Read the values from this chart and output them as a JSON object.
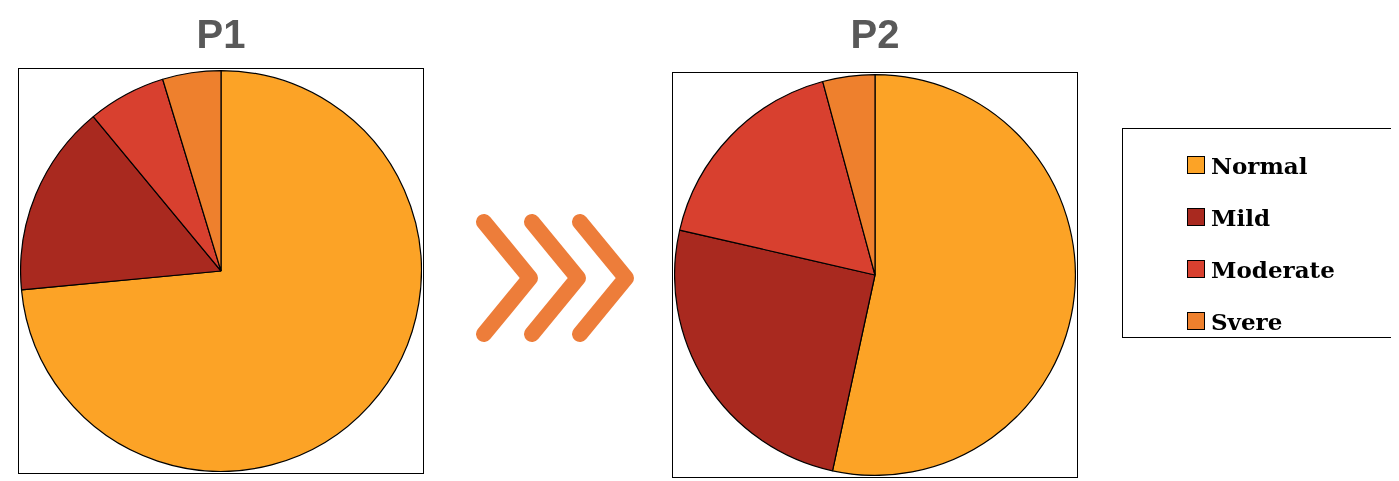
{
  "chart_data": [
    {
      "type": "pie",
      "title": "P1",
      "categories": [
        null,
        null,
        null,
        null
      ],
      "values": [
        73.5,
        15.5,
        6.3,
        4.7
      ],
      "colors": [
        "#fca326",
        "#a9291f",
        "#d8402f",
        "#ee802d"
      ],
      "legend": false
    },
    {
      "type": "pie",
      "title": "P2",
      "categories": [
        "Normal",
        "Mild",
        "Moderate",
        "Svere"
      ],
      "values": [
        53.4,
        25.2,
        17.2,
        4.2
      ],
      "colors": [
        "#fca326",
        "#a9291f",
        "#d8402f",
        "#ee802d"
      ],
      "legend": "right"
    }
  ]
}
